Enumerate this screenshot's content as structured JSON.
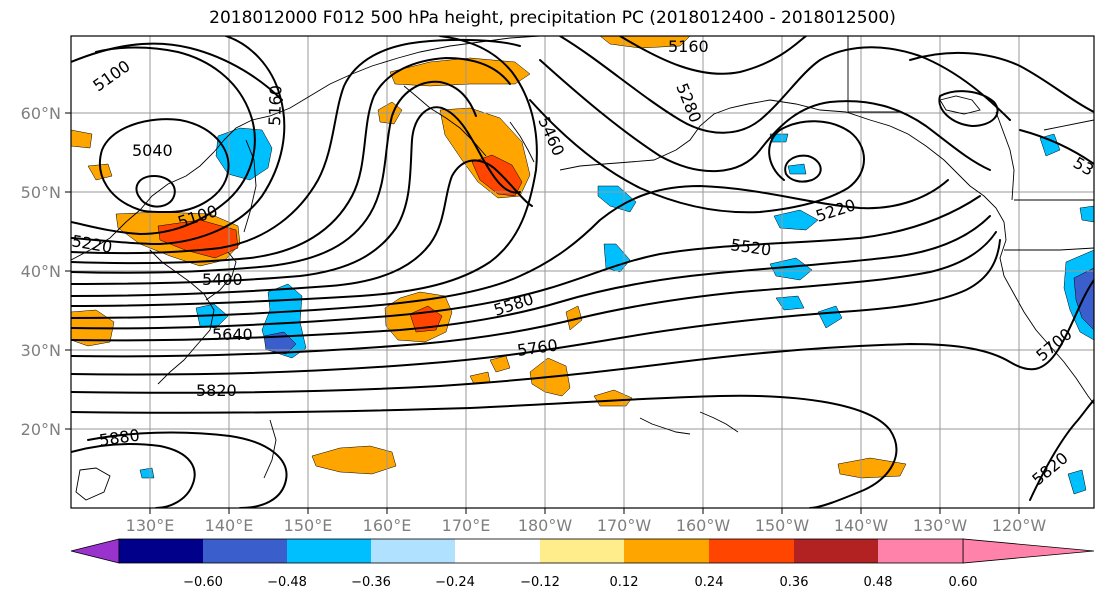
{
  "title": "2018012000 F012 500 hPa height, precipitation PC (2018012400 - 2018012500)",
  "lat_labels": [
    "60°N",
    "50°N",
    "40°N",
    "30°N",
    "20°N"
  ],
  "lon_labels": [
    "130°E",
    "140°E",
    "150°E",
    "160°E",
    "170°E",
    "180°W",
    "170°W",
    "160°W",
    "150°W",
    "140°W",
    "130°W",
    "120°W"
  ],
  "contour_labels": [
    "5100",
    "5160",
    "5040",
    "5160",
    "5280",
    "5460",
    "5220",
    "5520",
    "5400",
    "5580",
    "5640",
    "5760",
    "5820",
    "5880",
    "5700",
    "5820",
    "5100",
    "5220",
    "53"
  ],
  "colorbar": {
    "colors": [
      "#9a32cd",
      "#00008b",
      "#3a5fcd",
      "#00bfff",
      "#b0e2ff",
      "#ffffff",
      "#ffec8b",
      "#ffa500",
      "#ff4500",
      "#b22222",
      "#ff82ab"
    ],
    "tick_labels": [
      "−0.60",
      "−0.48",
      "−0.36",
      "−0.24",
      "−0.12",
      "0.12",
      "0.24",
      "0.36",
      "0.48",
      "0.60"
    ]
  }
}
